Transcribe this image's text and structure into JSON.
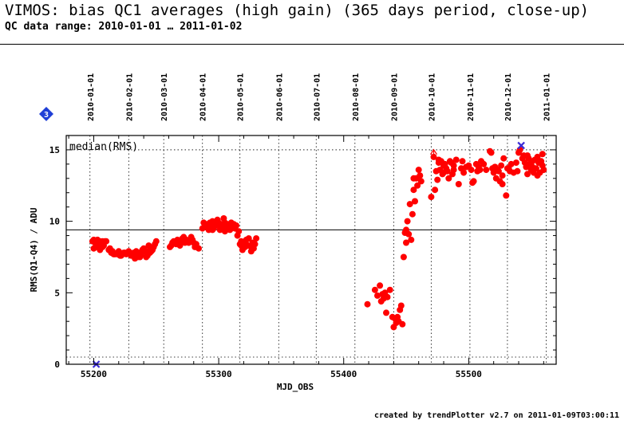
{
  "header": {
    "title": "VIMOS: bias QC1 averages (high gain) (365 days period, close-up)",
    "subtitle": "QC data range: 2010-01-01 … 2011-01-02"
  },
  "footer": {
    "text": "created by trendPlotter v2.7 on 2011-01-09T03:00:11"
  },
  "badge": {
    "label": "3",
    "color": "#1f3fd6"
  },
  "colors": {
    "points": "#ff0000",
    "reference_line": "#000000",
    "special_marker": "#3a2bd6",
    "grid": "#000000"
  },
  "chart_data": {
    "type": "scatter",
    "annotation": "median(RMS)",
    "xlabel": "MJD_OBS",
    "ylabel": "RMS(Q1-Q4) / ADU",
    "xlim": [
      55178,
      55570
    ],
    "ylim": [
      0,
      16
    ],
    "x_ticks": [
      55200,
      55300,
      55400,
      55500
    ],
    "y_ticks": [
      0,
      5,
      10,
      15
    ],
    "date_ticks": [
      {
        "label": "2010-01-01",
        "mjd": 55197
      },
      {
        "label": "2010-02-01",
        "mjd": 55228
      },
      {
        "label": "2010-03-01",
        "mjd": 55256
      },
      {
        "label": "2010-04-01",
        "mjd": 55287
      },
      {
        "label": "2010-05-01",
        "mjd": 55317
      },
      {
        "label": "2010-06-01",
        "mjd": 55348
      },
      {
        "label": "2010-07-01",
        "mjd": 55378
      },
      {
        "label": "2010-08-01",
        "mjd": 55409
      },
      {
        "label": "2010-09-01",
        "mjd": 55440
      },
      {
        "label": "2010-10-01",
        "mjd": 55470
      },
      {
        "label": "2010-11-01",
        "mjd": 55501
      },
      {
        "label": "2010-12-01",
        "mjd": 55531
      },
      {
        "label": "2011-01-01",
        "mjd": 55562
      }
    ],
    "reference_line_y": 9.4,
    "dotted_lines_y": [
      15,
      0.5
    ],
    "grid": "vertical dotted at month boundaries",
    "special_points": [
      {
        "x": 55542,
        "y": 15.3,
        "shape": "cross"
      },
      {
        "x": 55202,
        "y": 0,
        "shape": "cross"
      }
    ],
    "outlier_arrow": {
      "x": 55472,
      "y": 14.9
    },
    "series": [
      {
        "x": [
          55199,
          55200,
          55201,
          55202,
          55203,
          55204,
          55205,
          55206,
          55207,
          55208,
          55210,
          55200,
          55202,
          55205,
          55207,
          55203,
          55209,
          55212,
          55214,
          55215,
          55217,
          55219,
          55220,
          55222,
          55224,
          55226,
          55213,
          55216,
          55221,
          55225,
          55228,
          55230,
          55232,
          55233,
          55234,
          55236,
          55237,
          55238,
          55240,
          55241,
          55242,
          55243,
          55244,
          55245,
          55246,
          55247,
          55248,
          55250,
          55229,
          55235,
          55239,
          55243,
          55246,
          55249,
          55261,
          55263,
          55264,
          55266,
          55267,
          55268,
          55270,
          55271,
          55272,
          55274,
          55275,
          55276,
          55277,
          55278,
          55279,
          55280,
          55282,
          55284,
          55262,
          55265,
          55269,
          55273,
          55281,
          55287,
          55288,
          55289,
          55290,
          55291,
          55292,
          55293,
          55294,
          55295,
          55296,
          55297,
          55298,
          55299,
          55300,
          55301,
          55302,
          55303,
          55304,
          55305,
          55306,
          55307,
          55308,
          55309,
          55310,
          55311,
          55312,
          55313,
          55314,
          55290,
          55295,
          55300,
          55305,
          55310,
          55315,
          55316,
          55317,
          55318,
          55319,
          55320,
          55321,
          55322,
          55323,
          55324,
          55326,
          55327,
          55328,
          55329,
          55330,
          55318,
          55322,
          55326,
          55419,
          55425,
          55427,
          55429,
          55430,
          55431,
          55432,
          55433,
          55434,
          55435,
          55437,
          55439,
          55440,
          55441,
          55442,
          55443,
          55444,
          55445,
          55446,
          55447,
          55448,
          55449,
          55450,
          55450,
          55451,
          55452,
          55453,
          55454,
          55455,
          55456,
          55457,
          55458,
          55460,
          55461,
          55462,
          55459,
          55456,
          55470,
          55472,
          55473,
          55474,
          55475,
          55476,
          55477,
          55478,
          55479,
          55480,
          55481,
          55482,
          55483,
          55484,
          55485,
          55486,
          55487,
          55488,
          55490,
          55492,
          55494,
          55496,
          55498,
          55500,
          55502,
          55504,
          55506,
          55507,
          55508,
          55510,
          55512,
          55514,
          55476,
          55480,
          55488,
          55495,
          55503,
          55509,
          55517,
          55518,
          55519,
          55520,
          55521,
          55522,
          55523,
          55524,
          55525,
          55526,
          55527,
          55528,
          55530,
          55531,
          55532,
          55534,
          55536,
          55538,
          55521,
          55527,
          55533,
          55539,
          55540,
          55541,
          55543,
          55544,
          55545,
          55546,
          55547,
          55548,
          55549,
          55550,
          55551,
          55552,
          55553,
          55554,
          55555,
          55556,
          55557,
          55558,
          55559,
          55560,
          55547,
          55551,
          55555,
          55559
        ],
        "y": [
          8.6,
          8.7,
          8.5,
          8.2,
          8.6,
          8.4,
          8.6,
          8.5,
          8.6,
          8.3,
          8.6,
          8.1,
          8.4,
          8.0,
          8.2,
          8.7,
          8.6,
          8.0,
          7.8,
          7.9,
          7.7,
          7.7,
          7.9,
          7.6,
          7.8,
          7.7,
          8.1,
          7.7,
          7.6,
          7.8,
          7.9,
          7.6,
          7.8,
          7.4,
          7.9,
          7.8,
          7.5,
          7.7,
          8.1,
          7.9,
          7.5,
          7.9,
          8.3,
          7.8,
          8.1,
          8.0,
          8.2,
          8.6,
          7.7,
          7.5,
          8.0,
          7.6,
          7.9,
          8.4,
          8.2,
          8.5,
          8.6,
          8.4,
          8.7,
          8.6,
          8.5,
          8.8,
          8.9,
          8.7,
          8.6,
          8.5,
          8.6,
          8.9,
          8.7,
          8.5,
          8.4,
          8.1,
          8.3,
          8.5,
          8.3,
          8.5,
          8.2,
          9.5,
          9.9,
          9.6,
          9.7,
          9.8,
          9.4,
          9.9,
          9.6,
          10.0,
          9.5,
          9.8,
          9.7,
          10.1,
          9.9,
          9.4,
          9.8,
          9.6,
          10.2,
          9.9,
          9.5,
          9.8,
          9.7,
          9.4,
          9.9,
          9.6,
          9.8,
          9.5,
          9.7,
          9.6,
          9.4,
          9.8,
          9.3,
          9.5,
          9.0,
          9.3,
          8.4,
          8.6,
          8.0,
          8.5,
          8.2,
          8.7,
          8.3,
          8.8,
          8.2,
          8.5,
          8.1,
          8.4,
          8.8,
          8.3,
          8.4,
          7.9,
          4.2,
          5.2,
          4.8,
          5.5,
          4.4,
          4.9,
          4.6,
          5.0,
          3.6,
          4.7,
          5.2,
          3.3,
          2.6,
          3.2,
          2.9,
          3.3,
          3.0,
          3.8,
          4.1,
          2.8,
          7.5,
          9.2,
          8.5,
          9.4,
          10.0,
          9.1,
          11.2,
          8.7,
          10.5,
          12.2,
          11.4,
          13.0,
          13.6,
          13.2,
          12.8,
          12.5,
          13.0,
          11.7,
          14.5,
          12.2,
          13.5,
          12.9,
          14.1,
          13.6,
          14.2,
          13.3,
          13.9,
          14.0,
          13.7,
          13.5,
          13.0,
          14.2,
          14.1,
          13.3,
          13.6,
          14.3,
          12.6,
          13.7,
          13.4,
          13.8,
          13.9,
          13.6,
          12.8,
          14.0,
          13.5,
          13.8,
          14.2,
          14.0,
          13.6,
          14.3,
          13.4,
          13.9,
          14.2,
          12.7,
          13.6,
          14.9,
          14.8,
          13.7,
          13.4,
          13.8,
          13.0,
          13.6,
          13.5,
          12.8,
          13.9,
          13.2,
          14.4,
          11.8,
          13.7,
          13.7,
          14.0,
          13.4,
          14.1,
          13.8,
          12.6,
          13.5,
          13.5,
          14.8,
          15.0,
          14.4,
          14.6,
          14.1,
          13.8,
          13.3,
          14.4,
          14.0,
          13.6,
          14.2,
          13.4,
          14.3,
          13.7,
          14.5,
          14.1,
          13.4,
          14.2,
          13.9,
          13.6,
          14.6,
          13.8,
          13.2,
          14.7
        ]
      }
    ]
  }
}
